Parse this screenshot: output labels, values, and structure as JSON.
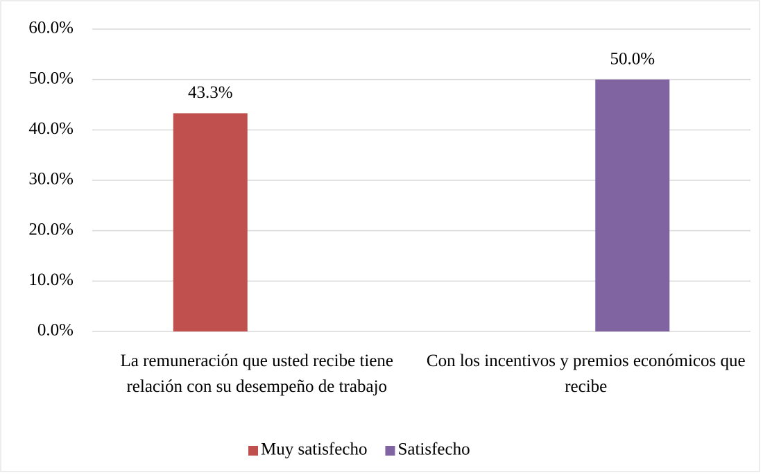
{
  "chart_data": {
    "type": "bar",
    "categories": [
      "La remuneración que usted recibe tiene relación con su desempeño de trabajo",
      "Con los incentivos y premios económicos que recibe"
    ],
    "series": [
      {
        "name": "Muy satisfecho",
        "color": "#c0504d",
        "values": [
          43.3,
          null
        ],
        "value_labels": [
          "43.3%",
          null
        ]
      },
      {
        "name": "Satisfecho",
        "color": "#8064a2",
        "values": [
          null,
          50.0
        ],
        "value_labels": [
          null,
          "50.0%"
        ]
      }
    ],
    "ylim": [
      0,
      60
    ],
    "yticks": [
      {
        "value": 0,
        "label": "0.0%"
      },
      {
        "value": 10,
        "label": "10.0%"
      },
      {
        "value": 20,
        "label": "20.0%"
      },
      {
        "value": 30,
        "label": "30.0%"
      },
      {
        "value": 40,
        "label": "40.0%"
      },
      {
        "value": 50,
        "label": "50.0%"
      },
      {
        "value": 60,
        "label": "60.0%"
      }
    ],
    "grid": true,
    "legend": "bottom"
  }
}
